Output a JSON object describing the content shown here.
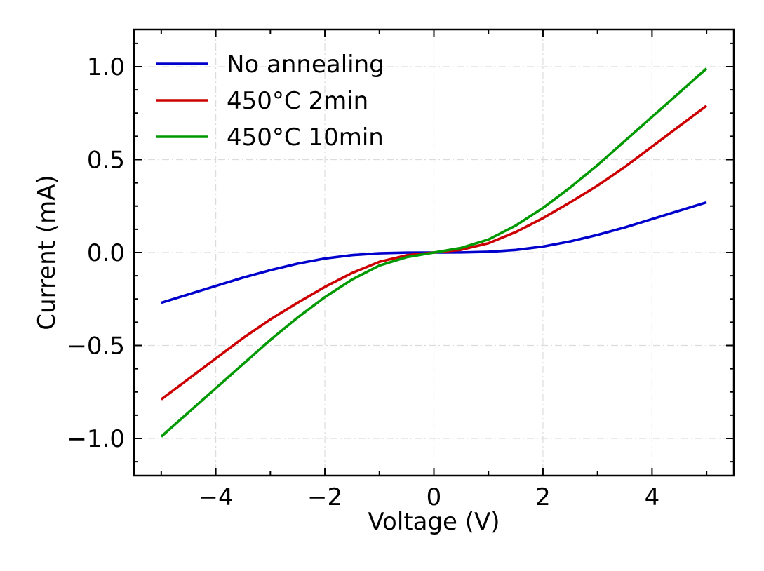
{
  "chart_data": {
    "type": "line",
    "title": "",
    "xlabel": "Voltage (V)",
    "ylabel": "Current (mA)",
    "xlim": [
      -5.5,
      5.5
    ],
    "ylim": [
      -1.2,
      1.2
    ],
    "grid": true,
    "legend_position": "top-left",
    "x_ticks": [
      -4,
      -2,
      0,
      2,
      4
    ],
    "x_tick_labels": [
      "−4",
      "−2",
      "0",
      "2",
      "4"
    ],
    "y_ticks": [
      1.0,
      0.5,
      0.0,
      -0.5,
      -1.0
    ],
    "y_tick_labels": [
      "1.0",
      "0.5",
      "0.0",
      "−0.5",
      "−1.0"
    ],
    "x_minor_ticks": [
      -5,
      -3,
      -1,
      1,
      3,
      5
    ],
    "y_minor_ticks": [
      -1.125,
      -0.875,
      -0.75,
      -0.625,
      -0.375,
      -0.25,
      -0.125,
      0.125,
      0.25,
      0.375,
      0.625,
      0.75,
      0.875,
      1.125
    ],
    "x": [
      -5,
      -4.5,
      -4,
      -3.5,
      -3,
      -2.5,
      -2,
      -1.5,
      -1,
      -0.5,
      0,
      0.5,
      1,
      1.5,
      2,
      2.5,
      3,
      3.5,
      4,
      4.5,
      5
    ],
    "series": [
      {
        "name": "No annealing",
        "color": "#0000cc",
        "values": [
          -0.27,
          -0.225,
          -0.18,
          -0.135,
          -0.095,
          -0.06,
          -0.032,
          -0.014,
          -0.004,
          -0.0005,
          0.0,
          0.0005,
          0.004,
          0.014,
          0.032,
          0.06,
          0.095,
          0.135,
          0.18,
          0.225,
          0.27
        ]
      },
      {
        "name": "450°C 2min",
        "color": "#cc0000",
        "values": [
          -0.79,
          -0.68,
          -0.57,
          -0.46,
          -0.36,
          -0.27,
          -0.185,
          -0.11,
          -0.05,
          -0.015,
          0.0,
          0.015,
          0.05,
          0.11,
          0.185,
          0.27,
          0.36,
          0.46,
          0.57,
          0.68,
          0.79
        ]
      },
      {
        "name": "450°C 10min",
        "color": "#009900",
        "values": [
          -0.99,
          -0.86,
          -0.73,
          -0.6,
          -0.47,
          -0.35,
          -0.24,
          -0.145,
          -0.07,
          -0.025,
          0.0,
          0.025,
          0.07,
          0.145,
          0.24,
          0.35,
          0.47,
          0.6,
          0.73,
          0.86,
          0.99
        ]
      }
    ]
  }
}
